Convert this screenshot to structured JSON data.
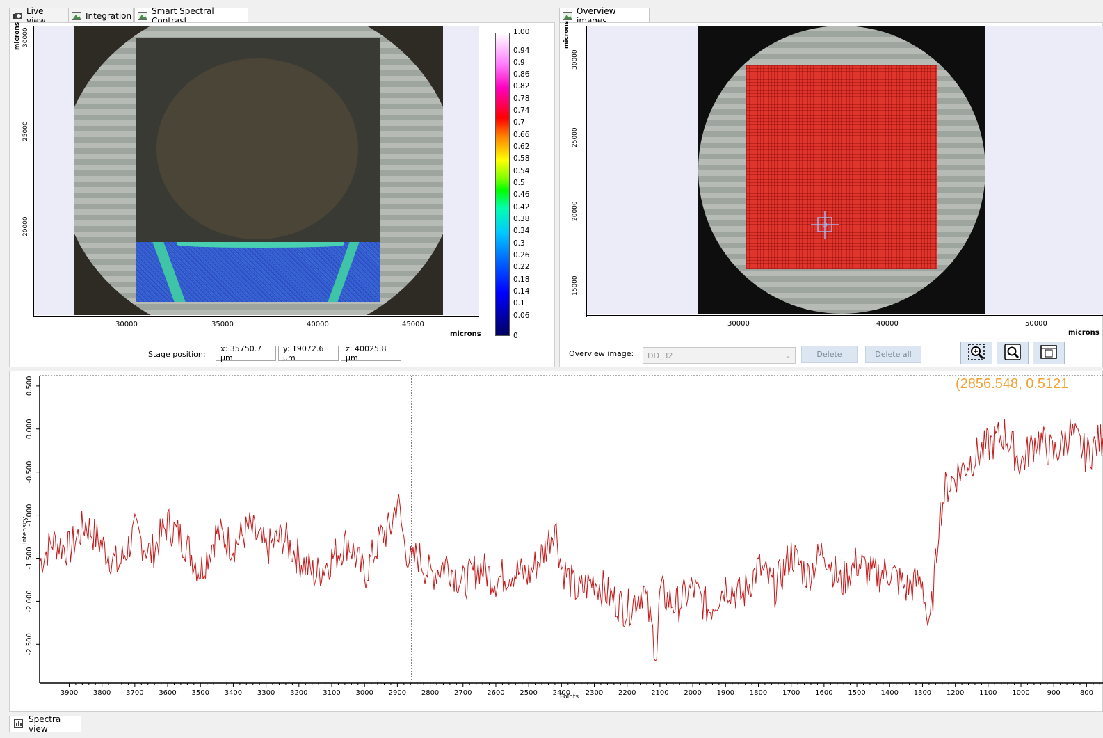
{
  "top_left": {
    "tabs": [
      {
        "label": "Live view",
        "icon": "camera-icon"
      },
      {
        "label": "Integration",
        "icon": "image-icon"
      },
      {
        "label": "Smart Spectral Contrast",
        "icon": "image-icon",
        "active": true
      }
    ],
    "y_axis_label": "microns",
    "y_ticks": [
      "30000",
      "25000",
      "20000"
    ],
    "x_ticks": [
      "30000",
      "35000",
      "40000",
      "45000"
    ],
    "x_axis_label": "microns",
    "colorbar_ticks": [
      "1.00",
      "0.94",
      "0.9",
      "0.86",
      "0.82",
      "0.78",
      "0.74",
      "0.7",
      "0.66",
      "0.62",
      "0.58",
      "0.54",
      "0.5",
      "0.46",
      "0.42",
      "0.38",
      "0.34",
      "0.3",
      "0.26",
      "0.22",
      "0.18",
      "0.14",
      "0.1",
      "0.06",
      "0"
    ],
    "stage_position_label": "Stage position:",
    "stage_x": "x: 35750.7 µm",
    "stage_y": "y: 19072.6 µm",
    "stage_z": "z: 40025.8 µm"
  },
  "top_right": {
    "tab": {
      "label": "Overview images",
      "icon": "image-icon"
    },
    "y_axis_label": "microns",
    "y_ticks": [
      "30000",
      "25000",
      "20000",
      "15000"
    ],
    "x_ticks": [
      "30000",
      "40000",
      "50000"
    ],
    "x_axis_label": "microns",
    "overview_label": "Overview image:",
    "overview_value": "DD_32",
    "delete_label": "Delete",
    "delete_all_label": "Delete all",
    "tool_icons": [
      "zoom-region-icon",
      "zoom-fit-icon",
      "frame-icon"
    ]
  },
  "spectra": {
    "cursor_readout": "(2856.548, 0.5121",
    "y_axis_label": "Intensity",
    "x_axis_label": "Points",
    "tab_label": "Spectra view",
    "tab_icon": "chart-icon"
  },
  "chart_data": {
    "type": "line",
    "title": "",
    "xlabel": "Points",
    "ylabel": "Intensity",
    "xlim": [
      3990,
      750
    ],
    "ylim": [
      -2.95,
      0.62
    ],
    "x_ticks": [
      3900,
      3800,
      3700,
      3600,
      3500,
      3400,
      3300,
      3200,
      3100,
      3000,
      2900,
      2800,
      2700,
      2600,
      2500,
      2400,
      2300,
      2200,
      2100,
      2000,
      1900,
      1800,
      1700,
      1600,
      1500,
      1400,
      1300,
      1200,
      1100,
      1000,
      900,
      800
    ],
    "y_ticks": [
      "0.500",
      "0.000",
      "-0.500",
      "-1.000",
      "-1.500",
      "-2.000",
      "-2.500"
    ],
    "y_tick_values": [
      0.5,
      0.0,
      -0.5,
      -1.0,
      -1.5,
      -2.0,
      -2.5
    ],
    "cursor_x": 2856.548,
    "series": [
      {
        "color": "#c41a1a",
        "x": [
          3990,
          3950,
          3900,
          3850,
          3800,
          3750,
          3700,
          3650,
          3600,
          3550,
          3500,
          3450,
          3400,
          3350,
          3300,
          3250,
          3200,
          3150,
          3100,
          3050,
          3000,
          2950,
          2920,
          2900,
          2880,
          2856,
          2840,
          2800,
          2750,
          2700,
          2650,
          2600,
          2550,
          2500,
          2450,
          2420,
          2400,
          2350,
          2300,
          2250,
          2200,
          2150,
          2110,
          2100,
          2050,
          2000,
          1950,
          1900,
          1850,
          1800,
          1750,
          1700,
          1650,
          1600,
          1550,
          1500,
          1450,
          1400,
          1350,
          1300,
          1280,
          1260,
          1250,
          1230,
          1200,
          1150,
          1100,
          1050,
          1000,
          950,
          900,
          850,
          800,
          750
        ],
        "y": [
          -1.55,
          -1.3,
          -1.4,
          -1.1,
          -1.35,
          -1.6,
          -1.2,
          -1.45,
          -1.1,
          -1.3,
          -1.65,
          -1.2,
          -1.35,
          -1.15,
          -1.4,
          -1.25,
          -1.5,
          -1.7,
          -1.5,
          -1.3,
          -1.7,
          -1.25,
          -1.15,
          -0.8,
          -1.3,
          -1.6,
          -1.45,
          -1.7,
          -1.55,
          -1.8,
          -1.6,
          -1.75,
          -1.65,
          -1.7,
          -1.4,
          -1.1,
          -1.6,
          -1.9,
          -1.75,
          -1.95,
          -2.1,
          -1.85,
          -2.6,
          -1.9,
          -2.05,
          -1.85,
          -2.1,
          -1.8,
          -1.95,
          -1.6,
          -1.85,
          -1.45,
          -1.7,
          -1.4,
          -1.8,
          -1.55,
          -1.7,
          -1.65,
          -1.85,
          -1.75,
          -2.4,
          -1.6,
          -1.05,
          -0.7,
          -0.55,
          -0.35,
          -0.2,
          -0.05,
          -0.4,
          -0.1,
          -0.3,
          -0.05,
          -0.3,
          -0.1
        ]
      }
    ]
  }
}
